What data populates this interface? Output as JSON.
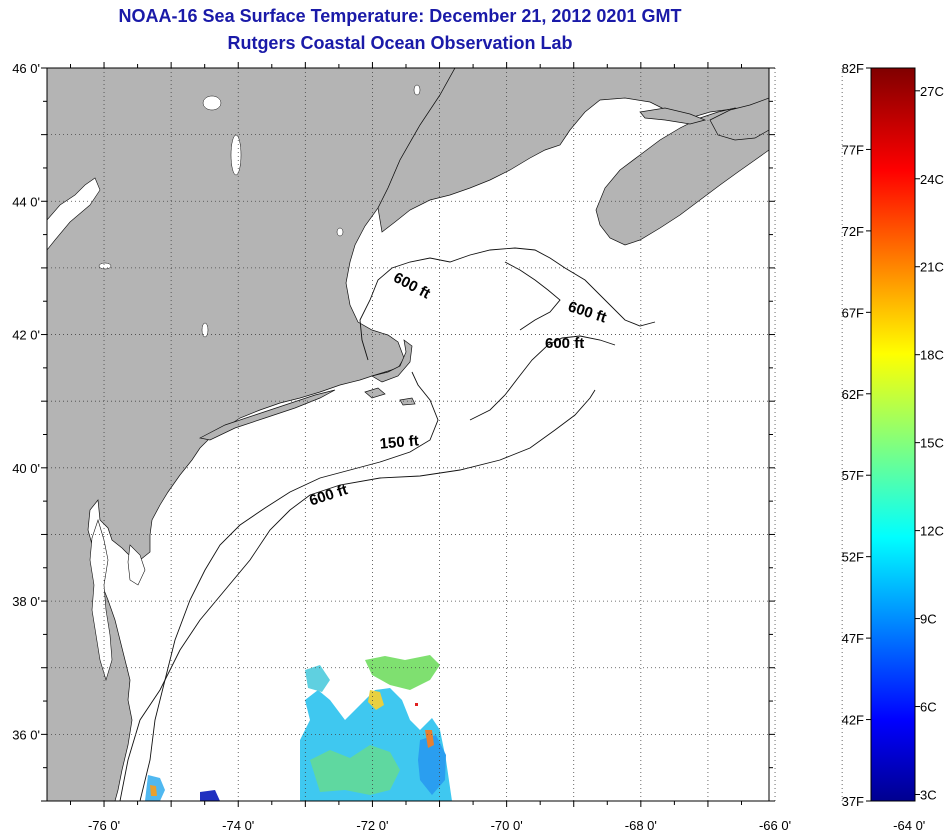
{
  "title": {
    "line1": "NOAA-16 Sea Surface Temperature:  December 21, 2012 0201 GMT",
    "line2": "Rutgers Coastal Ocean Observation Lab"
  },
  "map": {
    "lat_labels": [
      "46 0'",
      "44 0'",
      "42 0'",
      "40 0'",
      "38 0'",
      "36 0'"
    ],
    "lon_labels": [
      "-76 0'",
      "-74 0'",
      "-72 0'",
      "-70 0'",
      "-68 0'",
      "-66 0'",
      "-64 0'"
    ],
    "contour_labels": [
      "600 ft",
      "600 ft",
      "600 ft",
      "150 ft",
      "600 ft"
    ],
    "land_color": "#b4b4b4",
    "ocean_color": "#ffffff",
    "grid_style": "dotted"
  },
  "colorbar": {
    "fahrenheit_labels": [
      "82F",
      "77F",
      "72F",
      "67F",
      "62F",
      "57F",
      "52F",
      "47F",
      "42F",
      "37F"
    ],
    "celsius_labels": [
      "27C",
      "24C",
      "21C",
      "18C",
      "15C",
      "12C",
      "9C",
      "6C",
      "3C"
    ]
  }
}
